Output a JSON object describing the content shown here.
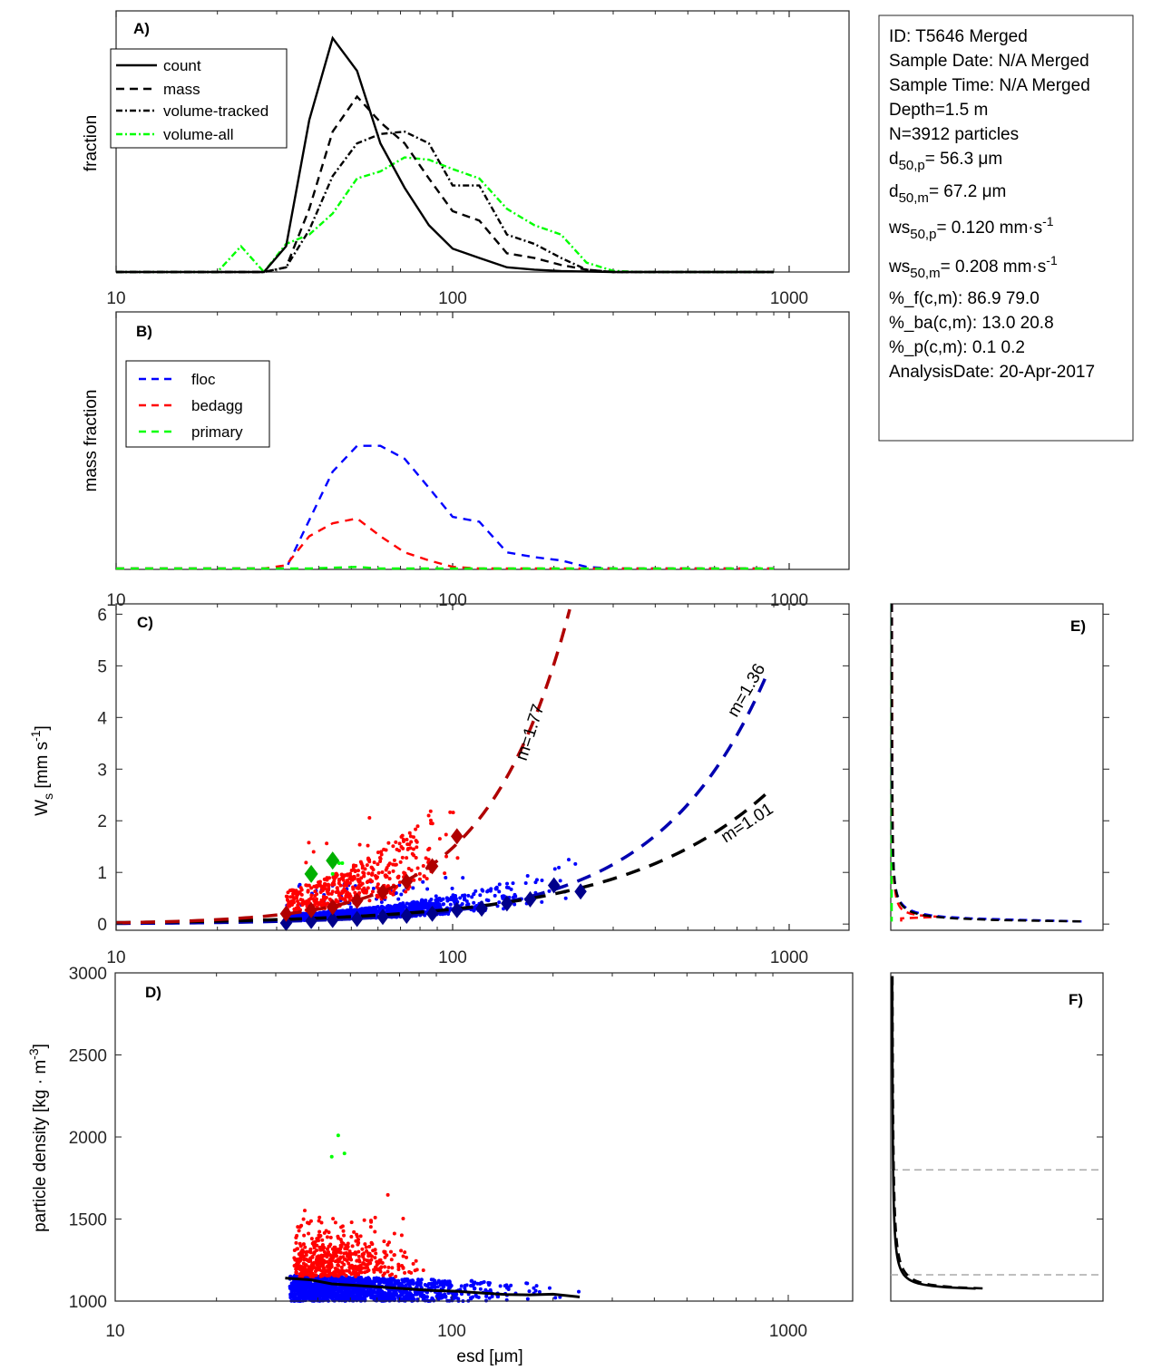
{
  "chart_data": [
    {
      "panel": "A)",
      "type": "line",
      "xscale": "log",
      "xlim": [
        10,
        1500
      ],
      "xticks": [
        "10",
        "100",
        "1000"
      ],
      "ylabel": "fraction",
      "legend": {
        "placement": "top-left",
        "entries": [
          "count",
          "mass",
          "volume-tracked",
          "volume-all"
        ]
      },
      "x": [
        10,
        12,
        14,
        16,
        18,
        20,
        23.5,
        27.5,
        32,
        37.5,
        44,
        52,
        61,
        72,
        85,
        100,
        120,
        145,
        175,
        210,
        250,
        300,
        360,
        430,
        520,
        620,
        750,
        900
      ],
      "series": [
        {
          "name": "count",
          "style": "solid",
          "color": "#000000",
          "values": [
            0,
            0,
            0,
            0,
            0,
            0.0,
            0.0,
            0.0,
            0.11,
            0.65,
            1.0,
            0.86,
            0.55,
            0.36,
            0.2,
            0.1,
            0.06,
            0.02,
            0.01,
            0.004,
            0.002,
            0,
            0,
            0,
            0,
            0,
            0,
            0
          ]
        },
        {
          "name": "mass",
          "style": "dashed",
          "color": "#000000",
          "values": [
            0,
            0,
            0,
            0,
            0,
            0.0,
            0.0,
            0.0,
            0.02,
            0.27,
            0.6,
            0.75,
            0.64,
            0.55,
            0.4,
            0.26,
            0.22,
            0.08,
            0.06,
            0.03,
            0.01,
            0,
            0,
            0,
            0,
            0,
            0,
            0
          ]
        },
        {
          "name": "volume-tracked",
          "style": "dashdot",
          "color": "#000000",
          "values": [
            0,
            0,
            0,
            0,
            0,
            0.0,
            0.0,
            0.0,
            0.02,
            0.18,
            0.41,
            0.55,
            0.59,
            0.6,
            0.55,
            0.37,
            0.37,
            0.16,
            0.12,
            0.06,
            0.01,
            0,
            0,
            0,
            0,
            0,
            0,
            0
          ]
        },
        {
          "name": "volume-all",
          "style": "dashdot",
          "color": "#00ff00",
          "values": [
            0,
            0,
            0,
            0,
            0,
            0.0,
            0.11,
            0.0,
            0.12,
            0.16,
            0.25,
            0.4,
            0.43,
            0.49,
            0.48,
            0.44,
            0.4,
            0.27,
            0.2,
            0.16,
            0.04,
            0.005,
            0,
            0,
            0,
            0,
            0,
            0
          ]
        }
      ]
    },
    {
      "panel": "B)",
      "type": "line",
      "xscale": "log",
      "xlim": [
        10,
        1500
      ],
      "xticks": [
        "10",
        "100",
        "1000"
      ],
      "ylabel": "mass fraction",
      "legend": {
        "placement": "top-left",
        "entries": [
          "floc",
          "bedagg",
          "primary"
        ]
      },
      "x": [
        10,
        14,
        20,
        27.5,
        32,
        37.5,
        44,
        52,
        61,
        72,
        85,
        100,
        120,
        145,
        175,
        210,
        250,
        300,
        400,
        600,
        900
      ],
      "series": [
        {
          "name": "floc",
          "style": "dashed",
          "color": "#0000ff",
          "values": [
            0,
            0,
            0,
            0,
            0.0,
            0.3,
            0.6,
            0.76,
            0.76,
            0.68,
            0.5,
            0.32,
            0.29,
            0.1,
            0.07,
            0.05,
            0.01,
            0.0,
            0,
            0,
            0
          ]
        },
        {
          "name": "bedagg",
          "style": "dashed",
          "color": "#ff0000",
          "values": [
            0,
            0,
            0,
            0,
            0.02,
            0.2,
            0.28,
            0.31,
            0.2,
            0.1,
            0.05,
            0.01,
            0.0,
            0,
            0,
            0,
            0,
            0,
            0,
            0,
            0
          ]
        },
        {
          "name": "primary",
          "style": "dashed",
          "color": "#00ff00",
          "values": [
            0,
            0,
            0,
            0,
            0,
            0,
            0.005,
            0.01,
            0.0,
            0,
            0,
            0,
            0,
            0,
            0,
            0,
            0,
            0,
            0,
            0,
            0
          ]
        }
      ]
    },
    {
      "panel": "C)",
      "type": "scatter",
      "xscale": "log",
      "xlim": [
        10,
        1500
      ],
      "ylim": [
        -0.12,
        6.2
      ],
      "xticks": [
        "10",
        "100",
        "1000"
      ],
      "yticks": [
        "0",
        "1",
        "2",
        "3",
        "4",
        "5",
        "6"
      ],
      "ylabel": "W_s [mm s^-1]",
      "fits": [
        {
          "name": "bedagg fit",
          "label": "m=1.77",
          "color": "#b00000",
          "x_range": [
            10,
            225
          ],
          "y_at_xmax": 6.2
        },
        {
          "name": "floc fit",
          "label": "m=1.36",
          "color": "#0000b0",
          "x_range": [
            10,
            880
          ],
          "y_at_xmax": 5.0
        },
        {
          "name": "all fit",
          "label": "m=1.01",
          "color": "#000000",
          "x_range": [
            10,
            880
          ],
          "y_at_xmax": 2.6
        }
      ],
      "bin_means_bedagg": {
        "x": [
          32,
          38,
          44,
          52,
          62,
          73,
          87,
          103
        ],
        "y": [
          0.2,
          0.27,
          0.33,
          0.45,
          0.62,
          0.82,
          1.12,
          1.7
        ]
      },
      "bin_means_floc": {
        "x": [
          32,
          38,
          44,
          52,
          62,
          73,
          87,
          103,
          122,
          145,
          170,
          200,
          240
        ],
        "y": [
          0.02,
          0.06,
          0.08,
          0.1,
          0.14,
          0.16,
          0.2,
          0.27,
          0.3,
          0.4,
          0.48,
          0.75,
          0.63
        ]
      },
      "bin_means_primary": {
        "x": [
          38,
          44
        ],
        "y": [
          0.97,
          1.23
        ]
      },
      "scatter_series": [
        {
          "name": "floc particles",
          "color": "#0000ff"
        },
        {
          "name": "bedagg particles",
          "color": "#ff0000"
        },
        {
          "name": "primary particles",
          "color": "#00ff00"
        }
      ]
    },
    {
      "panel": "D)",
      "type": "scatter",
      "xscale": "log",
      "xlim": [
        10,
        1600
      ],
      "ylim": [
        1000,
        3000
      ],
      "xticks": [
        "10",
        "100",
        "1000"
      ],
      "yticks": [
        "1000",
        "1500",
        "2000",
        "2500",
        "3000"
      ],
      "xlabel": "esd [μm]",
      "ylabel": "particle density [kg · m^-3]",
      "mean_line": {
        "x": [
          32,
          38,
          44,
          52,
          62,
          73,
          87,
          103,
          122,
          145,
          170,
          200,
          240
        ],
        "y": [
          1140,
          1130,
          1105,
          1095,
          1085,
          1075,
          1065,
          1060,
          1050,
          1040,
          1038,
          1042,
          1025
        ]
      },
      "primary_points": {
        "x": [
          44,
          46,
          48
        ],
        "y": [
          1880,
          2010,
          1900
        ]
      }
    },
    {
      "panel": "E)",
      "type": "line",
      "ylim": [
        -0.12,
        6.2
      ],
      "series": [
        {
          "name": "all",
          "style": "dashed",
          "color": "#000000"
        },
        {
          "name": "floc",
          "style": "dashed",
          "color": "#0000ff"
        },
        {
          "name": "bedagg",
          "style": "dashed",
          "color": "#ff0000"
        },
        {
          "name": "primary",
          "style": "dashed",
          "color": "#00ff00"
        }
      ]
    },
    {
      "panel": "F)",
      "type": "line",
      "ylim": [
        1000,
        3000
      ],
      "reference_lines": [
        1160,
        1800
      ],
      "series": [
        {
          "name": "count",
          "style": "solid",
          "color": "#000000"
        },
        {
          "name": "mass",
          "style": "dashed",
          "color": "#000000"
        }
      ]
    }
  ],
  "info_box": {
    "lines": [
      "ID: T5646 Merged",
      "Sample Date: N/A Merged",
      "Sample Time: N/A Merged",
      "Depth=1.5 m",
      "N=3912 particles"
    ],
    "d50p": {
      "sym": "d",
      "sub": "50,p",
      "val": "=  56.3 μm"
    },
    "d50m": {
      "sym": "d",
      "sub": "50,m",
      "val": "=  67.2 μm"
    },
    "ws50p": {
      "sym": "ws",
      "sub": "50,p",
      "val": "= 0.120 mm·s",
      "sup": "-1"
    },
    "ws50m": {
      "sym": "ws",
      "sub": "50,m",
      "val": "= 0.208 mm·s",
      "sup": "-1"
    },
    "tail": [
      "%_f(c,m): 86.9 79.0",
      "%_ba(c,m): 13.0 20.8",
      "%_p(c,m): 0.1 0.2",
      "AnalysisDate: 20-Apr-2017"
    ]
  },
  "labels": {
    "A": "A)",
    "B": "B)",
    "C": "C)",
    "D": "D)",
    "E": "E)",
    "F": "F)",
    "ylab_A": "fraction",
    "ylab_B": "mass fraction",
    "ylab_C_main": "W",
    "ylab_C_sub": "s",
    "ylab_C_rest": " [mm s",
    "ylab_C_sup": "-1",
    "ylab_C_end": "]",
    "ylab_D_main": "particle density [kg · m",
    "ylab_D_sup": "-3",
    "ylab_D_end": "]",
    "xlab_D": "esd [μm]"
  }
}
